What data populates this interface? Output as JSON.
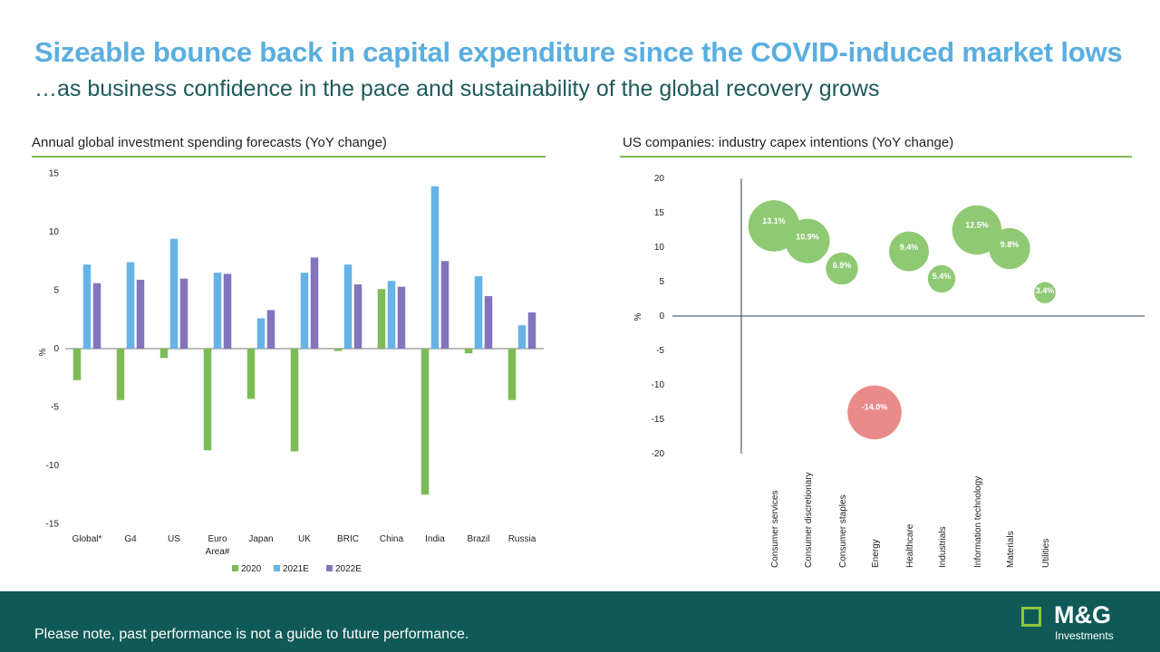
{
  "header": {
    "title": "Sizeable bounce back in capital expenditure since the COVID-induced market lows",
    "subtitle": "…as business confidence in the pace and sustainability of the global recovery grows"
  },
  "colors": {
    "title": "#5aaee0",
    "subtitle": "#1e5a5a",
    "series_2020": "#7dbb57",
    "series_2021E": "#67b3e6",
    "series_2022E": "#8474be",
    "bubble_positive": "#8fc974",
    "bubble_negative": "#ea8a8a",
    "footer": "#0f5a57",
    "logo_square": "#8dc63f"
  },
  "footer": {
    "disclaimer": "Please note, past performance is not a guide to future performance.",
    "logo_main": "M&G",
    "logo_sub": "Investments"
  },
  "chart_data": [
    {
      "type": "bar",
      "title": "Annual global investment spending forecasts (YoY change)",
      "ylabel": "%",
      "ylim": [
        -15,
        15
      ],
      "yticks": [
        15,
        10,
        5,
        0,
        -5,
        -10,
        -15
      ],
      "categories": [
        "Global*",
        "G4",
        "US",
        "Euro Area#",
        "Japan",
        "UK",
        "BRIC",
        "China",
        "India",
        "Brazil",
        "Russia"
      ],
      "series": [
        {
          "name": "2020",
          "values": [
            -2.7,
            -4.4,
            -0.8,
            -8.7,
            -4.3,
            -8.8,
            -0.2,
            5.1,
            -12.5,
            -0.4,
            -4.4
          ]
        },
        {
          "name": "2021E",
          "values": [
            7.2,
            7.4,
            9.4,
            6.5,
            2.6,
            6.5,
            7.2,
            5.8,
            13.9,
            6.2,
            2.0
          ]
        },
        {
          "name": "2022E",
          "values": [
            5.6,
            5.9,
            6.0,
            6.4,
            3.3,
            7.8,
            5.5,
            5.3,
            7.5,
            4.5,
            3.1
          ]
        }
      ],
      "legend": "bottom"
    },
    {
      "type": "scatter",
      "title": "US companies: industry capex intentions (YoY change)",
      "ylabel": "%",
      "ylim": [
        -20,
        20
      ],
      "yticks": [
        20,
        15,
        10,
        5,
        0,
        -5,
        -10,
        -15,
        -20
      ],
      "categories": [
        "Consumer services",
        "Consumer discretionary",
        "Consumer staples",
        "Energy",
        "Healthcare",
        "Industrials",
        "Information technology",
        "Materials",
        "Utilities"
      ],
      "values": [
        13.1,
        10.9,
        6.9,
        -14.0,
        9.4,
        5.4,
        12.5,
        9.8,
        3.4
      ],
      "labels": [
        "13.1%",
        "10.9%",
        "6.9%",
        "-14.0%",
        "9.4%",
        "5.4%",
        "12.5%",
        "9.8%",
        "3.4%"
      ]
    }
  ]
}
